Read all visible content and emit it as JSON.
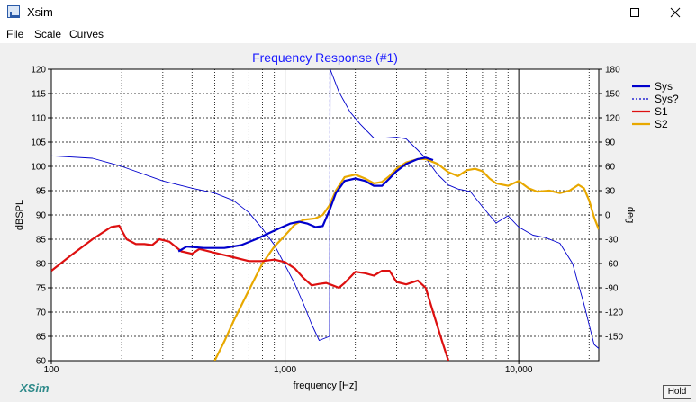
{
  "window": {
    "title": "Xsim",
    "minimize_icon": "minimize-icon",
    "maximize_icon": "maximize-icon",
    "close_icon": "close-icon"
  },
  "menu": [
    "File",
    "Scale",
    "Curves"
  ],
  "logo": "XSim",
  "hold_button": "Hold",
  "chart_data": {
    "type": "line",
    "title": "Frequency Response (#1)",
    "xlabel": "frequency [Hz]",
    "ylabel": "dBSPL",
    "y2label": "deg",
    "xscale": "log",
    "xlim": [
      100,
      22000
    ],
    "ylim": [
      60,
      120
    ],
    "y2lim": [
      -180,
      180
    ],
    "xticks": [
      100,
      1000,
      10000
    ],
    "xtick_labels": [
      "100",
      "1,000",
      "10,000"
    ],
    "yticks": [
      60,
      65,
      70,
      75,
      80,
      85,
      90,
      95,
      100,
      105,
      110,
      115,
      120
    ],
    "y2ticks": [
      -150,
      -120,
      -90,
      -60,
      -30,
      0,
      30,
      60,
      90,
      120,
      150,
      180
    ],
    "grid": true,
    "legend_position": "top-right",
    "series": [
      {
        "name": "Sys",
        "axis": "left",
        "color": "#0000cc",
        "style": "solid",
        "points": [
          [
            350,
            82.5
          ],
          [
            380,
            83.5
          ],
          [
            450,
            83.2
          ],
          [
            550,
            83.2
          ],
          [
            650,
            83.8
          ],
          [
            750,
            85
          ],
          [
            850,
            86.2
          ],
          [
            950,
            87.3
          ],
          [
            1050,
            88.2
          ],
          [
            1150,
            88.6
          ],
          [
            1250,
            88.2
          ],
          [
            1350,
            87.5
          ],
          [
            1450,
            87.7
          ],
          [
            1550,
            91
          ],
          [
            1650,
            94.5
          ],
          [
            1800,
            97
          ],
          [
            2000,
            97.5
          ],
          [
            2200,
            97
          ],
          [
            2400,
            96
          ],
          [
            2600,
            96
          ],
          [
            2800,
            97.5
          ],
          [
            3000,
            99
          ],
          [
            3300,
            100.5
          ],
          [
            3700,
            101.5
          ],
          [
            4000,
            101.8
          ],
          [
            4300,
            101.3
          ]
        ]
      },
      {
        "name": "Sys?",
        "axis": "right",
        "color": "#0000cc",
        "style": "dashed",
        "points": [
          [
            100,
            73
          ],
          [
            150,
            70
          ],
          [
            200,
            60
          ],
          [
            300,
            42
          ],
          [
            400,
            33
          ],
          [
            500,
            27
          ],
          [
            600,
            18
          ],
          [
            700,
            3
          ],
          [
            800,
            -17
          ],
          [
            900,
            -37
          ],
          [
            1000,
            -62
          ],
          [
            1100,
            -85
          ],
          [
            1200,
            -110
          ],
          [
            1300,
            -135
          ],
          [
            1400,
            -155
          ],
          [
            1550,
            -150
          ],
          [
            1560,
            180
          ],
          [
            1700,
            152
          ],
          [
            1900,
            127
          ],
          [
            2100,
            112
          ],
          [
            2400,
            95
          ],
          [
            2700,
            95
          ],
          [
            3000,
            96
          ],
          [
            3300,
            94
          ],
          [
            3700,
            80
          ],
          [
            4000,
            70
          ],
          [
            4500,
            50
          ],
          [
            5000,
            37
          ],
          [
            5500,
            32
          ],
          [
            6200,
            29
          ],
          [
            7000,
            10
          ],
          [
            8000,
            -10
          ],
          [
            9000,
            -1
          ],
          [
            10000,
            -15
          ],
          [
            11500,
            -25
          ],
          [
            13000,
            -28
          ],
          [
            15000,
            -35
          ],
          [
            17000,
            -60
          ],
          [
            19000,
            -110
          ],
          [
            21000,
            -160
          ],
          [
            22000,
            -165
          ]
        ]
      },
      {
        "name": "S1",
        "axis": "left",
        "color": "#dd1010",
        "style": "solid",
        "points": [
          [
            100,
            78.5
          ],
          [
            120,
            81.5
          ],
          [
            150,
            85
          ],
          [
            180,
            87.5
          ],
          [
            195,
            87.8
          ],
          [
            210,
            85
          ],
          [
            230,
            84
          ],
          [
            250,
            84
          ],
          [
            270,
            83.8
          ],
          [
            290,
            85
          ],
          [
            320,
            84.5
          ],
          [
            360,
            82.5
          ],
          [
            400,
            82
          ],
          [
            430,
            83
          ],
          [
            500,
            82.2
          ],
          [
            600,
            81.3
          ],
          [
            700,
            80.5
          ],
          [
            800,
            80.5
          ],
          [
            900,
            80.8
          ],
          [
            1000,
            80.3
          ],
          [
            1100,
            79
          ],
          [
            1200,
            77
          ],
          [
            1300,
            75.5
          ],
          [
            1400,
            75.8
          ],
          [
            1500,
            76
          ],
          [
            1600,
            75.5
          ],
          [
            1700,
            75
          ],
          [
            1800,
            76
          ],
          [
            2000,
            78.3
          ],
          [
            2200,
            78
          ],
          [
            2400,
            77.5
          ],
          [
            2600,
            78.5
          ],
          [
            2800,
            78.5
          ],
          [
            3000,
            76.2
          ],
          [
            3300,
            75.7
          ],
          [
            3700,
            76.5
          ],
          [
            4000,
            75
          ],
          [
            4300,
            70
          ],
          [
            4700,
            64
          ],
          [
            5000,
            60
          ]
        ]
      },
      {
        "name": "S2",
        "axis": "left",
        "color": "#e8a800",
        "style": "solid",
        "points": [
          [
            500,
            60
          ],
          [
            550,
            64
          ],
          [
            600,
            68
          ],
          [
            700,
            74.5
          ],
          [
            800,
            80
          ],
          [
            900,
            83.5
          ],
          [
            1000,
            85.8
          ],
          [
            1100,
            88
          ],
          [
            1200,
            89
          ],
          [
            1350,
            89.3
          ],
          [
            1450,
            90
          ],
          [
            1550,
            92
          ],
          [
            1650,
            95
          ],
          [
            1800,
            97.8
          ],
          [
            2000,
            98.3
          ],
          [
            2200,
            97.5
          ],
          [
            2400,
            96.5
          ],
          [
            2600,
            96.8
          ],
          [
            2800,
            98
          ],
          [
            3000,
            99.5
          ],
          [
            3300,
            100.8
          ],
          [
            3700,
            101.5
          ],
          [
            4000,
            101.5
          ],
          [
            4500,
            100.5
          ],
          [
            5000,
            98.8
          ],
          [
            5500,
            98
          ],
          [
            6000,
            99.2
          ],
          [
            6500,
            99.5
          ],
          [
            7000,
            99
          ],
          [
            7500,
            97.5
          ],
          [
            8000,
            96.5
          ],
          [
            9000,
            96
          ],
          [
            10000,
            97
          ],
          [
            11000,
            95.5
          ],
          [
            12000,
            94.8
          ],
          [
            13500,
            95
          ],
          [
            15000,
            94.5
          ],
          [
            16500,
            95
          ],
          [
            18000,
            96.2
          ],
          [
            19000,
            95.5
          ],
          [
            20000,
            93
          ],
          [
            21000,
            89.5
          ],
          [
            22000,
            87
          ]
        ]
      }
    ]
  }
}
